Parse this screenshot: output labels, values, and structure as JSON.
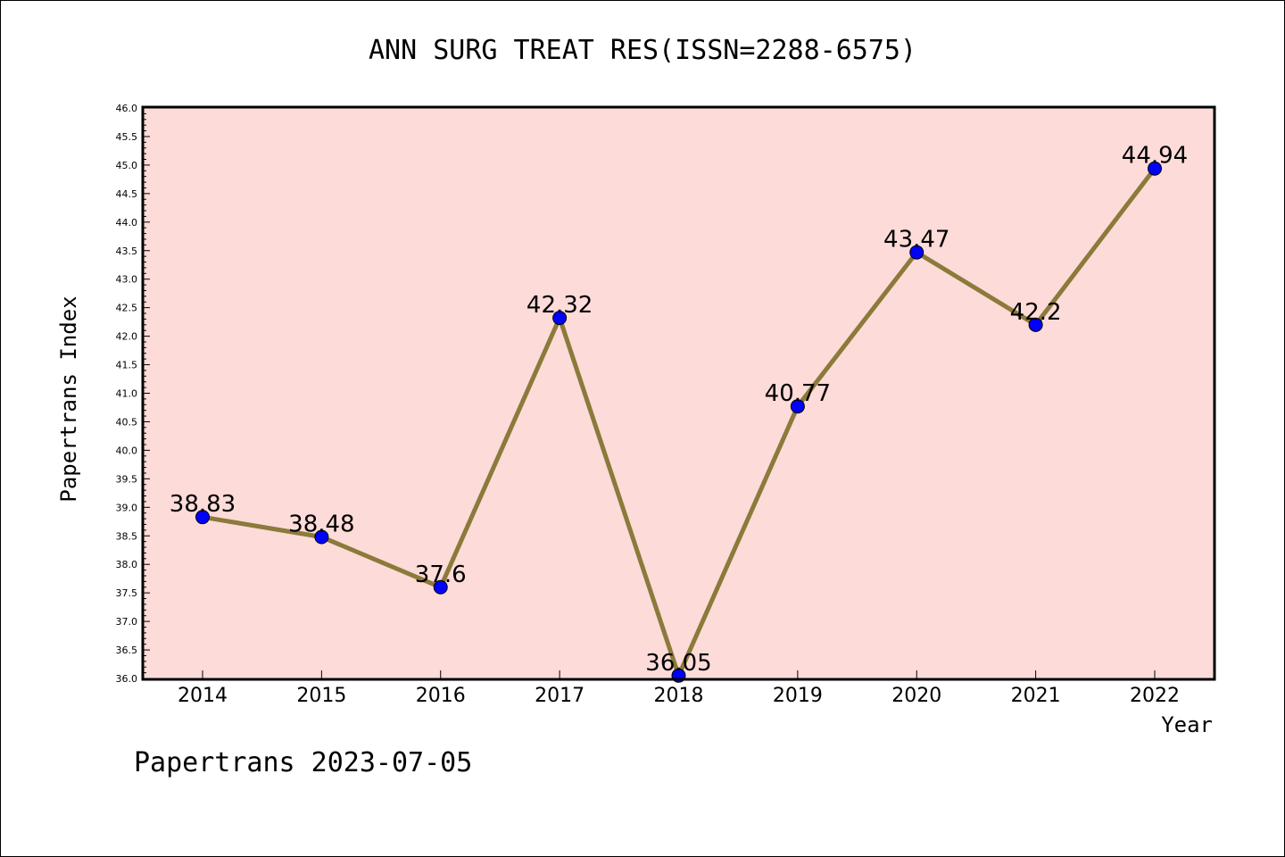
{
  "chart_data": {
    "type": "line",
    "title": "ANN SURG TREAT RES(ISSN=2288-6575)",
    "xlabel": "Year",
    "ylabel": "Papertrans Index",
    "categories": [
      "2014",
      "2015",
      "2016",
      "2017",
      "2018",
      "2019",
      "2020",
      "2021",
      "2022"
    ],
    "values": [
      38.83,
      38.48,
      37.6,
      42.32,
      36.05,
      40.77,
      43.47,
      42.2,
      44.94
    ],
    "data_labels": [
      "38.83",
      "38.48",
      "37.6",
      "42.32",
      "36.05",
      "40.77",
      "43.47",
      "42.2",
      "44.94"
    ],
    "ylim": [
      36.0,
      46.0
    ],
    "ytick_step": 0.5,
    "grid": false,
    "colors": {
      "plot_background": "#fddbd9",
      "line": "#8b7a3a",
      "marker": "#0000ff"
    }
  },
  "footer": "Papertrans 2023-07-05"
}
